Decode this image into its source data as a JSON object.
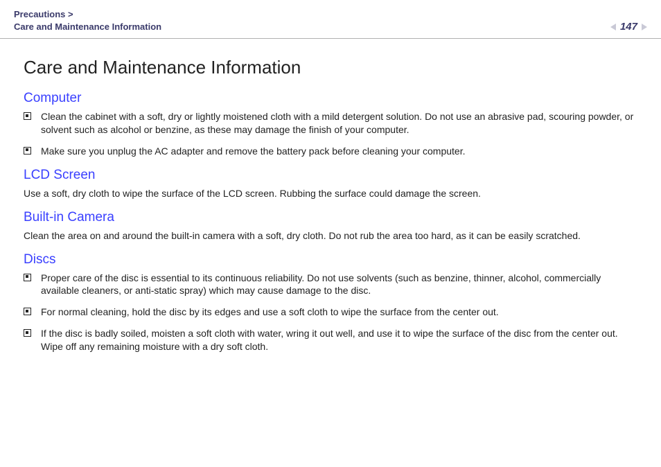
{
  "header": {
    "breadcrumb_line1": "Precautions >",
    "breadcrumb_line2": "Care and Maintenance Information",
    "page_number": "147"
  },
  "colors": {
    "heading_blue": "#3a40ff",
    "breadcrumb_navy": "#3a3a6a",
    "rule_gray": "#b0b0b0",
    "arrow_gray": "#c9c9d6",
    "body_text": "#222222"
  },
  "title": "Care and Maintenance Information",
  "sections": {
    "computer": {
      "heading": "Computer",
      "items": [
        "Clean the cabinet with a soft, dry or lightly moistened cloth with a mild detergent solution. Do not use an abrasive pad, scouring powder, or solvent such as alcohol or benzine, as these may damage the finish of your computer.",
        "Make sure you unplug the AC adapter and remove the battery pack before cleaning your computer."
      ]
    },
    "lcd": {
      "heading": "LCD Screen",
      "body": "Use a soft, dry cloth to wipe the surface of the LCD screen. Rubbing the surface could damage the screen."
    },
    "camera": {
      "heading": "Built-in Camera",
      "body": "Clean the area on and around the built-in camera with a soft, dry cloth. Do not rub the area too hard, as it can be easily scratched."
    },
    "discs": {
      "heading": "Discs",
      "items": [
        "Proper care of the disc is essential to its continuous reliability. Do not use solvents (such as benzine, thinner, alcohol, commercially available cleaners, or anti-static spray) which may cause damage to the disc.",
        "For normal cleaning, hold the disc by its edges and use a soft cloth to wipe the surface from the center out.",
        "If the disc is badly soiled, moisten a soft cloth with water, wring it out well, and use it to wipe the surface of the disc from the center out. Wipe off any remaining moisture with a dry soft cloth."
      ]
    }
  }
}
